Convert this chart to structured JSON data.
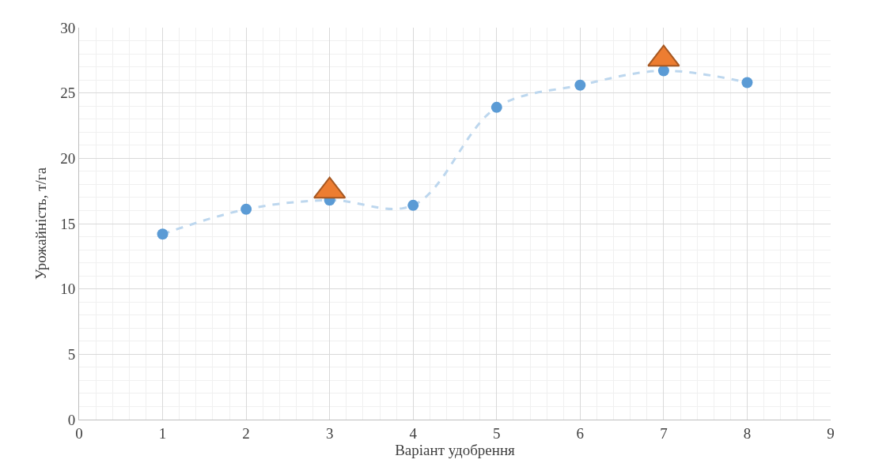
{
  "chart_data": {
    "type": "scatter",
    "xlabel": "Варіант удобрення",
    "ylabel": "Урожайність, т/га",
    "xlim": [
      0,
      9
    ],
    "xticks": [
      0,
      1,
      2,
      3,
      4,
      5,
      6,
      7,
      8,
      9
    ],
    "ylim": [
      0,
      30
    ],
    "yticks": [
      0,
      5,
      10,
      15,
      20,
      25,
      30
    ],
    "grid": true,
    "series": [
      {
        "type": "line",
        "color": "#bdd7ee",
        "line_style": "dashed",
        "marker": "none",
        "x": [
          1,
          2,
          3,
          4,
          5,
          6,
          7,
          8
        ],
        "values": [
          14.2,
          16.1,
          16.8,
          16.4,
          23.9,
          25.6,
          26.7,
          25.8
        ]
      },
      {
        "color": "#5b9bd5",
        "marker": "circle",
        "x": [
          1,
          2,
          3,
          4,
          5,
          6,
          7,
          8
        ],
        "values": [
          14.2,
          16.1,
          16.8,
          16.4,
          23.9,
          25.6,
          26.7,
          25.8
        ]
      },
      {
        "color": "#ed7d31",
        "marker": "triangle",
        "x": [
          3,
          7
        ],
        "values": [
          17.5,
          27.6
        ]
      }
    ]
  }
}
